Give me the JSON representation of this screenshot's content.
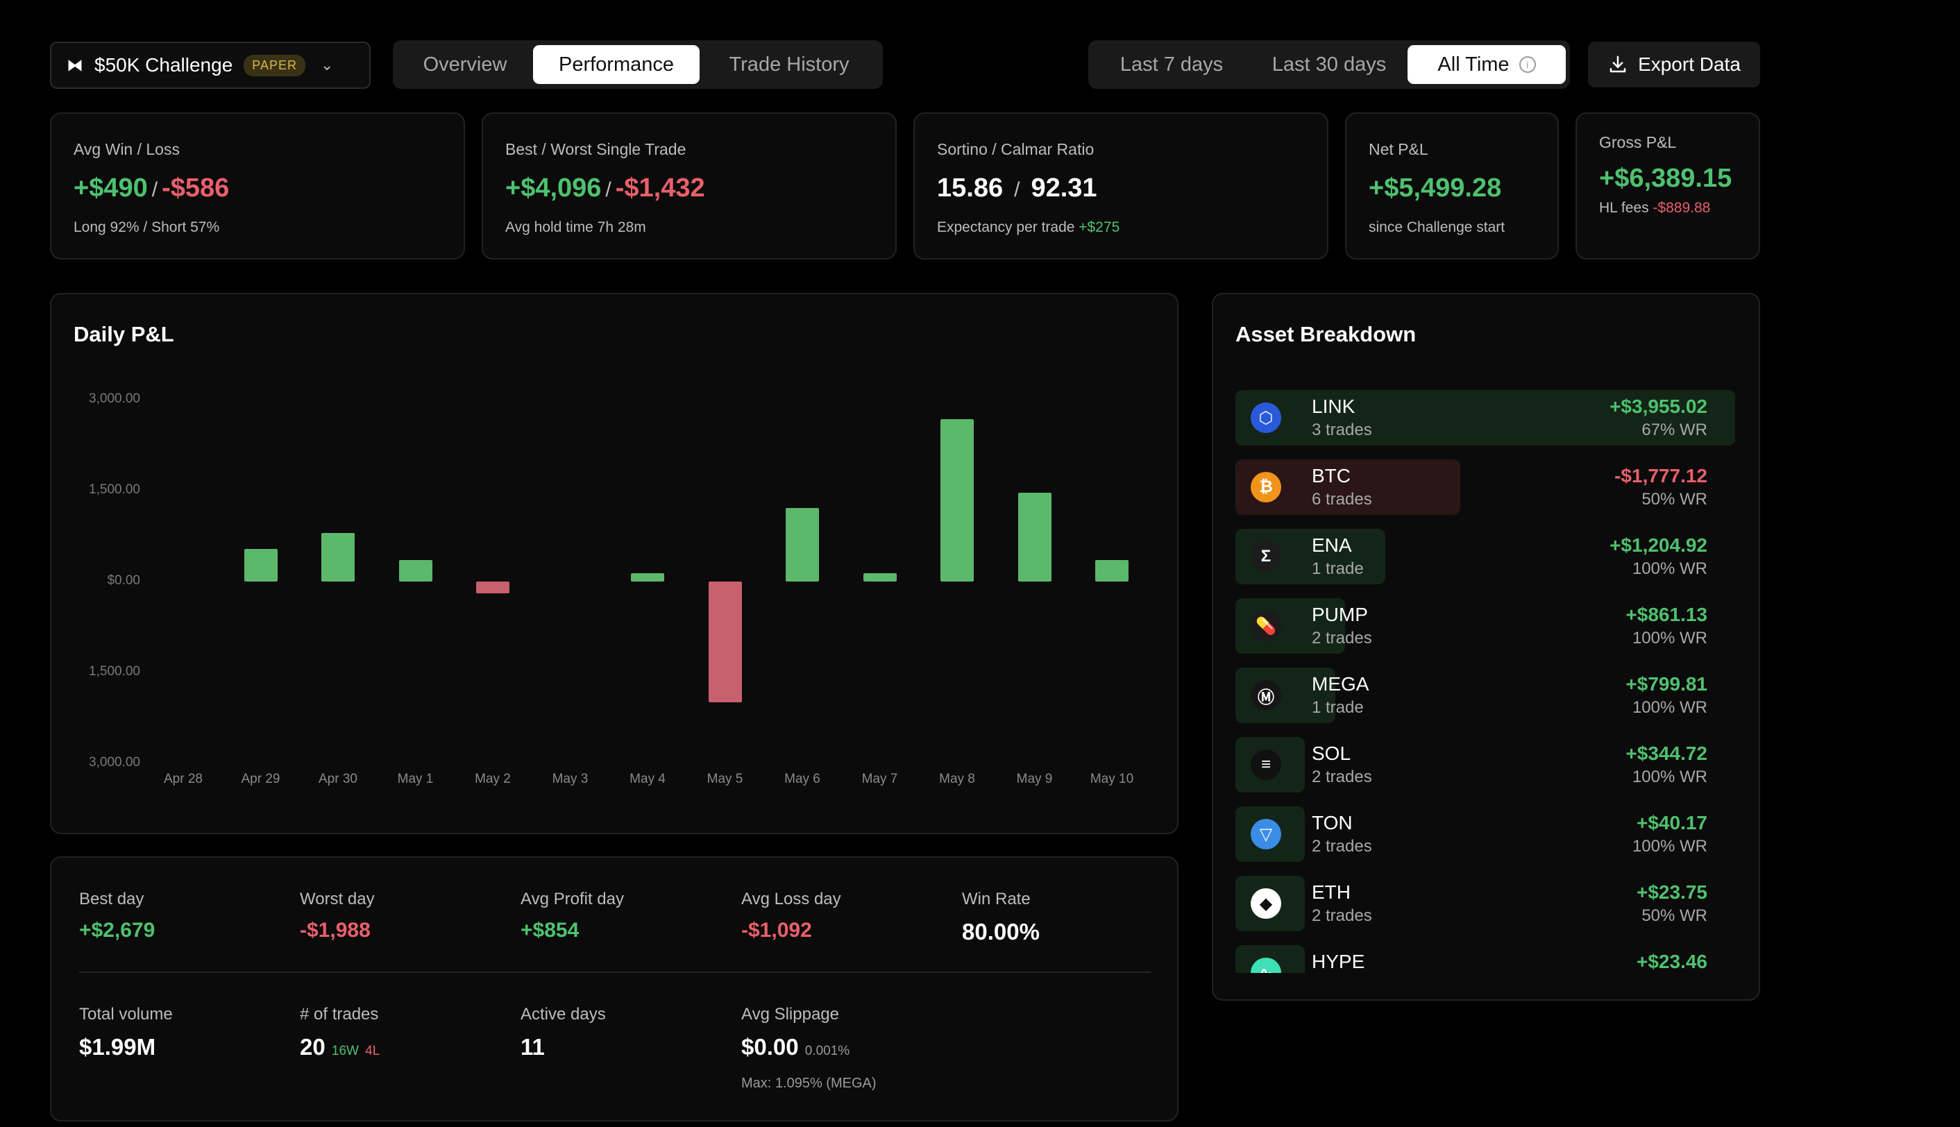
{
  "header": {
    "challenge_name": "$50K Challenge",
    "challenge_badge": "PAPER",
    "tabs": [
      {
        "label": "Overview",
        "active": false
      },
      {
        "label": "Performance",
        "active": true
      },
      {
        "label": "Trade History",
        "active": false
      }
    ],
    "ranges": [
      {
        "label": "Last 7 days",
        "active": false
      },
      {
        "label": "Last 30 days",
        "active": false
      },
      {
        "label": "All Time",
        "active": true
      }
    ],
    "export_label": "Export Data"
  },
  "stats": {
    "avg_win_loss": {
      "label": "Avg Win / Loss",
      "win": "+$490",
      "loss": "-$586",
      "sub": "Long 92% / Short 57%"
    },
    "best_worst": {
      "label": "Best / Worst Single Trade",
      "best": "+$4,096",
      "worst": "-$1,432",
      "sub": "Avg hold time 7h 28m"
    },
    "sortino": {
      "label": "Sortino / Calmar Ratio",
      "sortino": "15.86",
      "calmar": "92.31",
      "sub_prefix": "Expectancy per trade",
      "sub_value": "+$275"
    },
    "net_pnl": {
      "label": "Net P&L",
      "value": "+$5,499.28",
      "sub": "since Challenge start"
    },
    "gross_pnl": {
      "label": "Gross P&L",
      "value": "+$6,389.15",
      "sub_prefix": "HL fees",
      "sub_value": "-$889.88"
    }
  },
  "daily_pnl": {
    "title": "Daily P&L"
  },
  "chart_data": {
    "type": "bar",
    "title": "Daily P&L",
    "categories": [
      "Apr 28",
      "Apr 29",
      "Apr 30",
      "May 1",
      "May 2",
      "May 3",
      "May 4",
      "May 5",
      "May 6",
      "May 7",
      "May 8",
      "May 9",
      "May 10"
    ],
    "values": [
      0,
      540,
      800,
      350,
      -200,
      0,
      140,
      -1988,
      1210,
      140,
      2679,
      1460,
      360
    ],
    "ylim": [
      -3000,
      3000
    ],
    "yticks": [
      3000,
      1500,
      0,
      -1500,
      -3000
    ],
    "ytick_labels": [
      "3,000.00",
      "1,500.00",
      "$0.00",
      "1,500.00",
      "3,000.00"
    ],
    "colors": {
      "positive": "#5cb86b",
      "negative": "#c9606d"
    },
    "grid": false,
    "legend": "none"
  },
  "summary": {
    "best_day": {
      "label": "Best day",
      "value": "+$2,679"
    },
    "worst_day": {
      "label": "Worst day",
      "value": "-$1,988"
    },
    "avg_profit_day": {
      "label": "Avg Profit day",
      "value": "+$854"
    },
    "avg_loss_day": {
      "label": "Avg Loss day",
      "value": "-$1,092"
    },
    "win_rate": {
      "label": "Win Rate",
      "value": "80.00%"
    },
    "total_volume": {
      "label": "Total volume",
      "value": "$1.99M"
    },
    "num_trades": {
      "label": "# of trades",
      "value": "20",
      "wins": "16W",
      "losses": "4L"
    },
    "active_days": {
      "label": "Active days",
      "value": "11"
    },
    "avg_slippage": {
      "label": "Avg Slippage",
      "value": "$0.00",
      "pct": "0.001%",
      "max": "Max: 1.095% (MEGA)"
    }
  },
  "assets": {
    "title": "Asset Breakdown",
    "items": [
      {
        "symbol": "LINK",
        "trades": "3 trades",
        "pnl": "+$3,955.02",
        "wr": "67% WR",
        "positive": true,
        "share": 1.0,
        "icon": "link-icon",
        "icon_color": "#2a5ada",
        "glyph": "⬡"
      },
      {
        "symbol": "BTC",
        "trades": "6 trades",
        "pnl": "-$1,777.12",
        "wr": "50% WR",
        "positive": false,
        "share": 0.45,
        "icon": "bitcoin-icon",
        "icon_color": "#f2931b",
        "glyph": "₿"
      },
      {
        "symbol": "ENA",
        "trades": "1 trade",
        "pnl": "+$1,204.92",
        "wr": "100% WR",
        "positive": true,
        "share": 0.3,
        "icon": "ena-icon",
        "icon_color": "#1c1c1c",
        "glyph": "Σ"
      },
      {
        "symbol": "PUMP",
        "trades": "2 trades",
        "pnl": "+$861.13",
        "wr": "100% WR",
        "positive": true,
        "share": 0.22,
        "icon": "pill-icon",
        "icon_color": "#1b1b1b",
        "glyph": "💊"
      },
      {
        "symbol": "MEGA",
        "trades": "1 trade",
        "pnl": "+$799.81",
        "wr": "100% WR",
        "positive": true,
        "share": 0.2,
        "icon": "mega-icon",
        "icon_color": "#161616",
        "glyph": "Ⓜ"
      },
      {
        "symbol": "SOL",
        "trades": "2 trades",
        "pnl": "+$344.72",
        "wr": "100% WR",
        "positive": true,
        "share": 0.09,
        "icon": "solana-icon",
        "icon_color": "#111111",
        "glyph": "≡"
      },
      {
        "symbol": "TON",
        "trades": "2 trades",
        "pnl": "+$40.17",
        "wr": "100% WR",
        "positive": true,
        "share": 0.02,
        "icon": "ton-icon",
        "icon_color": "#3b8ce5",
        "glyph": "▽"
      },
      {
        "symbol": "ETH",
        "trades": "2 trades",
        "pnl": "+$23.75",
        "wr": "50% WR",
        "positive": true,
        "share": 0.02,
        "icon": "ethereum-icon",
        "icon_color": "#ffffff",
        "glyph": "◆"
      },
      {
        "symbol": "HYPE",
        "trades": "",
        "pnl": "+$23.46",
        "wr": "",
        "positive": true,
        "share": 0.02,
        "icon": "hype-icon",
        "icon_color": "#3ee0b5",
        "glyph": "∿"
      }
    ]
  }
}
